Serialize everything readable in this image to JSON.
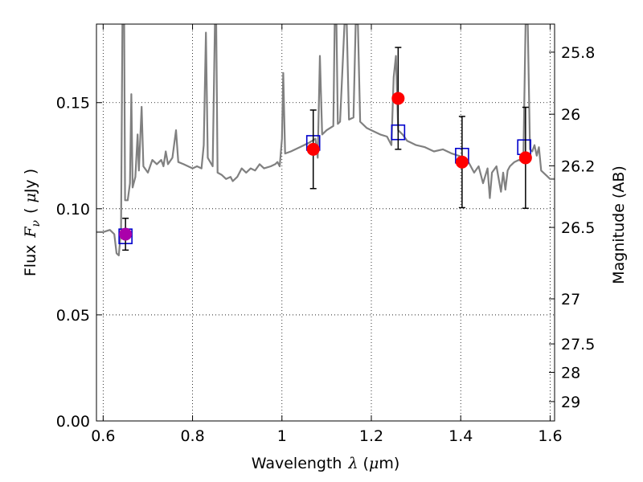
{
  "chart_data": {
    "type": "scatter",
    "xlabel_text": "Wavelength",
    "xlabel_symbol": "λ",
    "xlabel_unit_open": "(",
    "xlabel_unit_mu": "μ",
    "xlabel_unit_rest": "m)",
    "ylabel_text": "Flux",
    "ylabel_symbol": "F",
    "ylabel_sub": "ν",
    "ylabel_unit_open": "(",
    "ylabel_unit_mu": "μ",
    "ylabel_unit_rest": "Jy )",
    "y2label": "Magnitude (AB)",
    "xlim": [
      0.585,
      1.61
    ],
    "ylim": [
      0.0,
      0.187
    ],
    "grid": true,
    "x_ticks": [
      {
        "value": 0.6,
        "label": "0.6"
      },
      {
        "value": 0.8,
        "label": "0.8"
      },
      {
        "value": 1.0,
        "label": "1"
      },
      {
        "value": 1.2,
        "label": "1.2"
      },
      {
        "value": 1.4,
        "label": "1.4"
      },
      {
        "value": 1.6,
        "label": "1.6"
      }
    ],
    "y_ticks": [
      {
        "value": 0.0,
        "label": "0.00"
      },
      {
        "value": 0.05,
        "label": "0.05"
      },
      {
        "value": 0.1,
        "label": "0.10"
      },
      {
        "value": 0.15,
        "label": "0.15"
      }
    ],
    "mag_ticks": [
      {
        "value": 25.8,
        "label": "25.8"
      },
      {
        "value": 26.0,
        "label": "26"
      },
      {
        "value": 26.2,
        "label": "26.2"
      },
      {
        "value": 26.5,
        "label": "26.5"
      },
      {
        "value": 27.0,
        "label": "27"
      },
      {
        "value": 27.5,
        "label": "27.5"
      },
      {
        "value": 28.0,
        "label": "28"
      },
      {
        "value": 29.0,
        "label": "29"
      }
    ],
    "series": [
      {
        "kind": "line",
        "color": "#808080",
        "points": [
          [
            0.585,
            0.089
          ],
          [
            0.6,
            0.089
          ],
          [
            0.615,
            0.09
          ],
          [
            0.625,
            0.088
          ],
          [
            0.63,
            0.079
          ],
          [
            0.635,
            0.078
          ],
          [
            0.64,
            0.09
          ],
          [
            0.643,
            0.187
          ],
          [
            0.647,
            0.187
          ],
          [
            0.649,
            0.104
          ],
          [
            0.655,
            0.104
          ],
          [
            0.66,
            0.112
          ],
          [
            0.663,
            0.154
          ],
          [
            0.666,
            0.11
          ],
          [
            0.672,
            0.115
          ],
          [
            0.677,
            0.135
          ],
          [
            0.68,
            0.118
          ],
          [
            0.686,
            0.148
          ],
          [
            0.69,
            0.12
          ],
          [
            0.7,
            0.117
          ],
          [
            0.71,
            0.123
          ],
          [
            0.72,
            0.121
          ],
          [
            0.73,
            0.123
          ],
          [
            0.735,
            0.12
          ],
          [
            0.74,
            0.127
          ],
          [
            0.745,
            0.121
          ],
          [
            0.755,
            0.124
          ],
          [
            0.763,
            0.137
          ],
          [
            0.768,
            0.122
          ],
          [
            0.78,
            0.121
          ],
          [
            0.79,
            0.12
          ],
          [
            0.8,
            0.119
          ],
          [
            0.81,
            0.12
          ],
          [
            0.82,
            0.119
          ],
          [
            0.825,
            0.13
          ],
          [
            0.83,
            0.183
          ],
          [
            0.834,
            0.124
          ],
          [
            0.845,
            0.12
          ],
          [
            0.85,
            0.187
          ],
          [
            0.853,
            0.187
          ],
          [
            0.856,
            0.117
          ],
          [
            0.865,
            0.116
          ],
          [
            0.875,
            0.114
          ],
          [
            0.885,
            0.115
          ],
          [
            0.89,
            0.113
          ],
          [
            0.9,
            0.115
          ],
          [
            0.91,
            0.119
          ],
          [
            0.92,
            0.117
          ],
          [
            0.93,
            0.119
          ],
          [
            0.94,
            0.118
          ],
          [
            0.95,
            0.121
          ],
          [
            0.96,
            0.119
          ],
          [
            0.975,
            0.12
          ],
          [
            0.985,
            0.121
          ],
          [
            0.99,
            0.122
          ],
          [
            0.995,
            0.12
          ],
          [
            1.0,
            0.133
          ],
          [
            1.003,
            0.164
          ],
          [
            1.007,
            0.126
          ],
          [
            1.02,
            0.127
          ],
          [
            1.04,
            0.129
          ],
          [
            1.06,
            0.131
          ],
          [
            1.075,
            0.133
          ],
          [
            1.08,
            0.124
          ],
          [
            1.085,
            0.172
          ],
          [
            1.09,
            0.135
          ],
          [
            1.1,
            0.137
          ],
          [
            1.115,
            0.139
          ],
          [
            1.118,
            0.187
          ],
          [
            1.122,
            0.187
          ],
          [
            1.125,
            0.14
          ],
          [
            1.13,
            0.141
          ],
          [
            1.14,
            0.187
          ],
          [
            1.145,
            0.187
          ],
          [
            1.15,
            0.142
          ],
          [
            1.16,
            0.143
          ],
          [
            1.165,
            0.187
          ],
          [
            1.17,
            0.187
          ],
          [
            1.175,
            0.141
          ],
          [
            1.19,
            0.138
          ],
          [
            1.2,
            0.137
          ],
          [
            1.22,
            0.135
          ],
          [
            1.235,
            0.134
          ],
          [
            1.245,
            0.13
          ],
          [
            1.25,
            0.162
          ],
          [
            1.255,
            0.172
          ],
          [
            1.26,
            0.137
          ],
          [
            1.27,
            0.135
          ],
          [
            1.28,
            0.132
          ],
          [
            1.29,
            0.131
          ],
          [
            1.3,
            0.13
          ],
          [
            1.32,
            0.129
          ],
          [
            1.34,
            0.127
          ],
          [
            1.36,
            0.128
          ],
          [
            1.38,
            0.126
          ],
          [
            1.395,
            0.125
          ],
          [
            1.41,
            0.124
          ],
          [
            1.42,
            0.121
          ],
          [
            1.43,
            0.117
          ],
          [
            1.44,
            0.12
          ],
          [
            1.45,
            0.112
          ],
          [
            1.46,
            0.119
          ],
          [
            1.465,
            0.105
          ],
          [
            1.47,
            0.117
          ],
          [
            1.48,
            0.12
          ],
          [
            1.49,
            0.108
          ],
          [
            1.495,
            0.117
          ],
          [
            1.5,
            0.109
          ],
          [
            1.505,
            0.118
          ],
          [
            1.51,
            0.12
          ],
          [
            1.52,
            0.122
          ],
          [
            1.53,
            0.123
          ],
          [
            1.54,
            0.122
          ],
          [
            1.545,
            0.187
          ],
          [
            1.55,
            0.187
          ],
          [
            1.555,
            0.128
          ],
          [
            1.56,
            0.127
          ],
          [
            1.565,
            0.13
          ],
          [
            1.57,
            0.125
          ],
          [
            1.575,
            0.129
          ],
          [
            1.58,
            0.118
          ],
          [
            1.59,
            0.116
          ],
          [
            1.6,
            0.114
          ],
          [
            1.61,
            0.114
          ]
        ]
      },
      {
        "kind": "square",
        "color": "#0000cc",
        "points": [
          {
            "x": 0.65,
            "y": 0.087
          },
          {
            "x": 1.07,
            "y": 0.131
          },
          {
            "x": 1.26,
            "y": 0.136
          },
          {
            "x": 1.403,
            "y": 0.125
          },
          {
            "x": 1.542,
            "y": 0.129
          }
        ]
      },
      {
        "kind": "circle_errorbar",
        "color": "#ff0000",
        "points": [
          {
            "x": 0.65,
            "y": 0.088,
            "yerr": 0.0075,
            "fill": "#aa00aa"
          },
          {
            "x": 1.07,
            "y": 0.128,
            "yerr": 0.0185
          },
          {
            "x": 1.26,
            "y": 0.152,
            "yerr": 0.024
          },
          {
            "x": 1.403,
            "y": 0.122,
            "yerr": 0.0215
          },
          {
            "x": 1.545,
            "y": 0.124,
            "yerr": 0.0238
          }
        ]
      }
    ]
  }
}
